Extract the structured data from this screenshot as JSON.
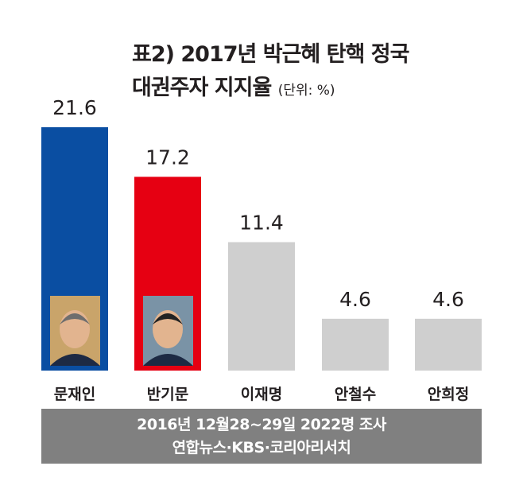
{
  "title_line1": "표2) 2017년 박근혜 탄핵 정국",
  "title_line2": "대권주자 지지율",
  "unit": "(단위: %)",
  "footer_line1": "2016년 12월28~29일 2022명 조사",
  "footer_line2": "연합뉴스·KBS·코리아리서치",
  "chart_data": {
    "type": "bar",
    "title": "표2) 2017년 박근혜 탄핵 정국 대권주자 지지율 (단위: %)",
    "categories": [
      "문재인",
      "반기문",
      "이재명",
      "안철수",
      "안희정"
    ],
    "values": [
      21.6,
      17.2,
      11.4,
      4.6,
      4.6
    ],
    "value_labels": [
      "21.6",
      "17.2",
      "11.4",
      "4.6",
      "4.6"
    ],
    "colors": [
      "#0a4ea2",
      "#e60012",
      "#cfcfcf",
      "#cfcfcf",
      "#cfcfcf"
    ],
    "ylim": [
      0,
      21.6
    ],
    "grid": false,
    "photos": [
      "문재인",
      "반기문"
    ]
  }
}
